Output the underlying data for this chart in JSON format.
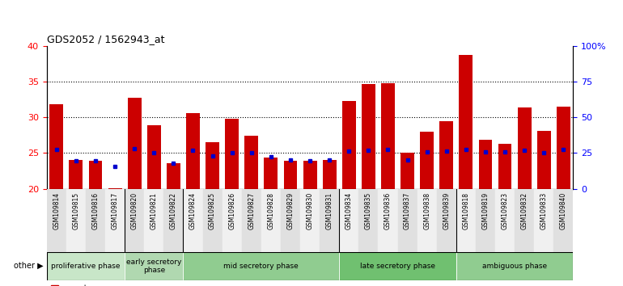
{
  "title": "GDS2052 / 1562943_at",
  "samples": [
    "GSM109814",
    "GSM109815",
    "GSM109816",
    "GSM109817",
    "GSM109820",
    "GSM109821",
    "GSM109822",
    "GSM109824",
    "GSM109825",
    "GSM109826",
    "GSM109827",
    "GSM109828",
    "GSM109829",
    "GSM109830",
    "GSM109831",
    "GSM109834",
    "GSM109835",
    "GSM109836",
    "GSM109837",
    "GSM109838",
    "GSM109839",
    "GSM109818",
    "GSM109819",
    "GSM109823",
    "GSM109832",
    "GSM109833",
    "GSM109840"
  ],
  "count_values": [
    31.8,
    24.0,
    23.9,
    20.1,
    32.7,
    28.9,
    23.6,
    30.6,
    26.5,
    29.8,
    27.4,
    24.4,
    23.9,
    23.9,
    24.0,
    32.3,
    34.7,
    34.8,
    25.1,
    28.0,
    29.5,
    38.7,
    26.9,
    26.3,
    31.4,
    28.1,
    31.5
  ],
  "percentile_values": [
    25.5,
    23.9,
    23.9,
    23.1,
    25.6,
    25.0,
    23.6,
    25.4,
    24.6,
    25.1,
    25.0,
    24.5,
    24.0,
    23.9,
    24.0,
    25.3,
    25.4,
    25.5,
    24.0,
    25.2,
    25.3,
    25.5,
    25.2,
    25.2,
    25.4,
    25.1,
    25.5
  ],
  "phases": [
    {
      "label": "proliferative phase",
      "start": 0,
      "end": 3,
      "color": "#c8e6c8"
    },
    {
      "label": "early secretory\nphase",
      "start": 4,
      "end": 6,
      "color": "#b0d8b0"
    },
    {
      "label": "mid secretory phase",
      "start": 7,
      "end": 14,
      "color": "#90cc90"
    },
    {
      "label": "late secretory phase",
      "start": 15,
      "end": 20,
      "color": "#70c070"
    },
    {
      "label": "ambiguous phase",
      "start": 21,
      "end": 26,
      "color": "#90cc90"
    }
  ],
  "phase_boundary_indices": [
    0,
    4,
    7,
    15,
    21,
    27
  ],
  "bar_color": "#cc0000",
  "percentile_color": "#0000cc",
  "ylim_left": [
    20,
    40
  ],
  "ylim_right": [
    0,
    100
  ],
  "yticks_left": [
    20,
    25,
    30,
    35,
    40
  ],
  "yticks_right": [
    0,
    25,
    50,
    75,
    100
  ],
  "yticklabels_right": [
    "0",
    "25",
    "50",
    "75",
    "100%"
  ],
  "grid_values": [
    25,
    30,
    35
  ],
  "other_label": "other"
}
